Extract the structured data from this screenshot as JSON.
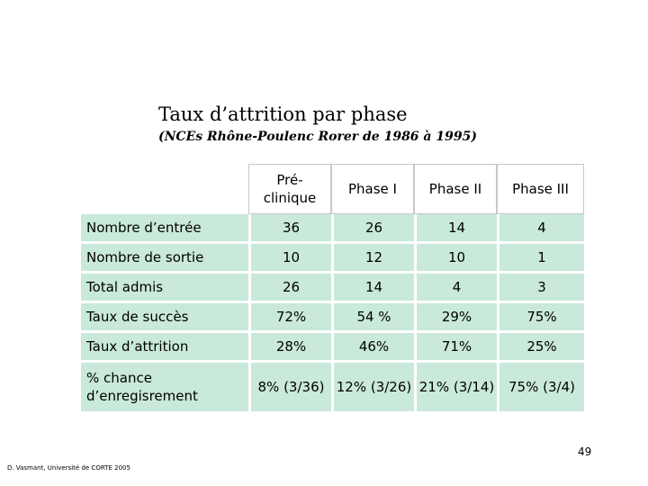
{
  "title": "Taux d’attrition par phase",
  "subtitle": "(NCEs Rhône-Poulenc Rorer de 1986 à 1995)",
  "table": {
    "columns": [
      "Pré- clinique",
      "Phase I",
      "Phase II",
      "Phase III"
    ],
    "rows": [
      {
        "label": "Nombre d’entrée",
        "values": [
          "36",
          "26",
          "14",
          "4"
        ]
      },
      {
        "label": "Nombre de sortie",
        "values": [
          "10",
          "12",
          "10",
          "1"
        ]
      },
      {
        "label": "Total admis",
        "values": [
          "26",
          "14",
          "4",
          "3"
        ]
      },
      {
        "label": "Taux de succès",
        "values": [
          "72%",
          "54 %",
          "29%",
          "75%"
        ]
      },
      {
        "label": "Taux d’attrition",
        "values": [
          "28%",
          "46%",
          "71%",
          "25%"
        ]
      },
      {
        "label": "% chance d’enregisrement",
        "values": [
          "8% (3/36)",
          "12% (3/26)",
          "21% (3/14)",
          "75% (3/4)"
        ]
      }
    ]
  },
  "page_number": "49",
  "footer": "D. Vasmant, Université de CORTE 2005",
  "colors": {
    "cell_bg": "#c9e9da",
    "header_border": "#c8c8c8"
  }
}
